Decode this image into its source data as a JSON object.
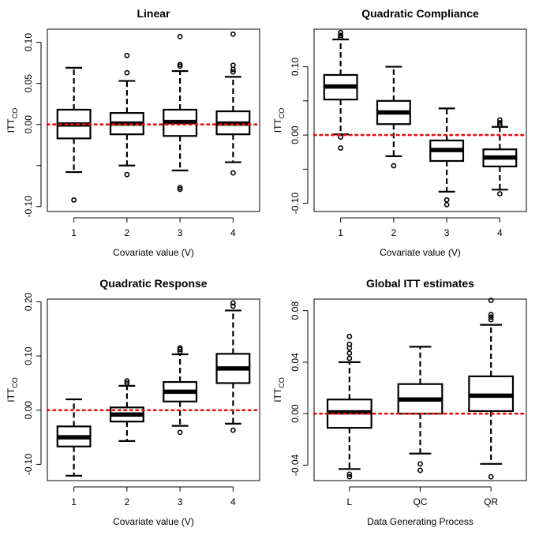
{
  "chart_data": [
    {
      "type": "box",
      "title": "Linear",
      "xlabel": "Covariate value (V)",
      "ylabel": "ITT",
      "ylabel_sub": "CO",
      "ylim": [
        -0.106,
        0.116
      ],
      "yticks": [
        -0.1,
        -0.05,
        0.0,
        0.05,
        0.1
      ],
      "ytick_labels": [
        "-0.10",
        "",
        "0.00",
        "0.05",
        "0.10"
      ],
      "reference_line": 0,
      "categories": [
        "1",
        "2",
        "3",
        "4"
      ],
      "boxes": [
        {
          "whislo": -0.058,
          "q1": -0.017,
          "med": 0.0,
          "q3": 0.018,
          "whishi": 0.069,
          "outliers": [
            -0.092
          ]
        },
        {
          "whislo": -0.05,
          "q1": -0.012,
          "med": 0.001,
          "q3": 0.014,
          "whishi": 0.053,
          "outliers": [
            -0.061,
            0.063,
            0.084
          ]
        },
        {
          "whislo": -0.056,
          "q1": -0.014,
          "med": 0.003,
          "q3": 0.018,
          "whishi": 0.065,
          "outliers": [
            -0.079,
            -0.077,
            0.071,
            0.073,
            0.107
          ]
        },
        {
          "whislo": -0.046,
          "q1": -0.012,
          "med": 0.001,
          "q3": 0.016,
          "whishi": 0.058,
          "outliers": [
            -0.059,
            0.064,
            0.067,
            0.072,
            0.11
          ]
        }
      ]
    },
    {
      "type": "box",
      "title": "Quadratic Compliance",
      "xlabel": "Covariate value (V)",
      "ylabel": "ITT",
      "ylabel_sub": "CO",
      "ylim": [
        -0.112,
        0.155
      ],
      "yticks": [
        -0.1,
        -0.05,
        0.0,
        0.05,
        0.1
      ],
      "ytick_labels": [
        "-0.10",
        "",
        "0.00",
        "",
        "0.10"
      ],
      "reference_line": 0,
      "categories": [
        "1",
        "2",
        "3",
        "4"
      ],
      "boxes": [
        {
          "whislo": 0.001,
          "q1": 0.052,
          "med": 0.071,
          "q3": 0.088,
          "whishi": 0.14,
          "outliers": [
            -0.019,
            -0.003,
            0.143,
            0.146,
            0.15
          ]
        },
        {
          "whislo": -0.031,
          "q1": 0.016,
          "med": 0.033,
          "q3": 0.05,
          "whishi": 0.1,
          "outliers": [
            -0.045
          ]
        },
        {
          "whislo": -0.083,
          "q1": -0.038,
          "med": -0.022,
          "q3": -0.008,
          "whishi": 0.039,
          "outliers": [
            -0.095,
            -0.102
          ]
        },
        {
          "whislo": -0.08,
          "q1": -0.046,
          "med": -0.033,
          "q3": -0.021,
          "whishi": 0.012,
          "outliers": [
            -0.086,
            0.015,
            0.018,
            0.022
          ]
        }
      ]
    },
    {
      "type": "box",
      "title": "Quadratic Response",
      "xlabel": "Covariate value (V)",
      "ylabel": "ITT",
      "ylabel_sub": "CO",
      "ylim": [
        -0.13,
        0.205
      ],
      "yticks": [
        -0.1,
        0.0,
        0.1,
        0.2
      ],
      "ytick_labels": [
        "-0.10",
        "0.00",
        "0.10",
        "0.20"
      ],
      "reference_line": 0,
      "categories": [
        "1",
        "2",
        "3",
        "4"
      ],
      "boxes": [
        {
          "whislo": -0.121,
          "q1": -0.067,
          "med": -0.05,
          "q3": -0.03,
          "whishi": 0.02,
          "outliers": []
        },
        {
          "whislo": -0.057,
          "q1": -0.021,
          "med": -0.008,
          "q3": 0.005,
          "whishi": 0.045,
          "outliers": [
            0.05,
            0.054
          ]
        },
        {
          "whislo": -0.029,
          "q1": 0.016,
          "med": 0.034,
          "q3": 0.052,
          "whishi": 0.103,
          "outliers": [
            -0.041,
            0.108,
            0.112,
            0.115
          ]
        },
        {
          "whislo": -0.025,
          "q1": 0.05,
          "med": 0.077,
          "q3": 0.104,
          "whishi": 0.184,
          "outliers": [
            -0.037,
            0.192,
            0.198
          ]
        }
      ]
    },
    {
      "type": "box",
      "title": "Global ITT estimates",
      "xlabel": "Data Generating Process",
      "ylabel": "ITT",
      "ylabel_sub": "CO",
      "ylim": [
        -0.052,
        0.089
      ],
      "yticks": [
        -0.04,
        0.0,
        0.04,
        0.08
      ],
      "ytick_labels": [
        "-0.04",
        "0.00",
        "0.04",
        "0.08"
      ],
      "reference_line": 0,
      "categories": [
        "L",
        "QC",
        "QR"
      ],
      "boxes": [
        {
          "whislo": -0.043,
          "q1": -0.011,
          "med": 0.001,
          "q3": 0.011,
          "whishi": 0.04,
          "outliers": [
            -0.049,
            -0.047,
            0.043,
            0.047,
            0.051,
            0.054,
            0.06
          ]
        },
        {
          "whislo": -0.031,
          "q1": 0.0,
          "med": 0.011,
          "q3": 0.023,
          "whishi": 0.052,
          "outliers": [
            -0.039,
            -0.044
          ]
        },
        {
          "whislo": -0.039,
          "q1": 0.002,
          "med": 0.014,
          "q3": 0.029,
          "whishi": 0.069,
          "outliers": [
            -0.049,
            0.073,
            0.075,
            0.077,
            0.088
          ]
        }
      ]
    }
  ]
}
